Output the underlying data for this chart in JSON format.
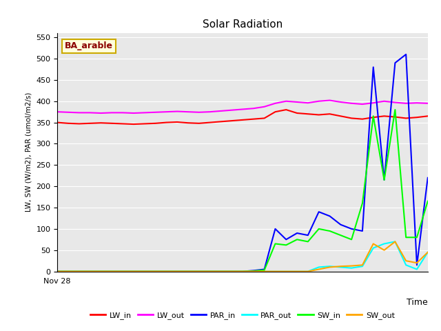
{
  "title": "Solar Radiation",
  "xlabel": "Time",
  "ylabel": "LW, SW (W/m2), PAR (umol/m2/s)",
  "annotation": "BA_arable",
  "ylim": [
    0,
    560
  ],
  "yticks": [
    0,
    50,
    100,
    150,
    200,
    250,
    300,
    350,
    400,
    450,
    500,
    550
  ],
  "x_label_start": "Nov 28",
  "background_color": "#e8e8e8",
  "series": {
    "LW_in": {
      "color": "#ff0000",
      "data": [
        350,
        348,
        347,
        348,
        349,
        348,
        347,
        346,
        347,
        348,
        350,
        351,
        349,
        348,
        350,
        352,
        354,
        356,
        358,
        360,
        375,
        380,
        372,
        370,
        368,
        370,
        365,
        360,
        358,
        362,
        365,
        363,
        360,
        362,
        365
      ]
    },
    "LW_out": {
      "color": "#ff00ff",
      "data": [
        375,
        374,
        373,
        373,
        372,
        373,
        373,
        372,
        373,
        374,
        375,
        376,
        375,
        374,
        375,
        377,
        379,
        381,
        383,
        387,
        395,
        400,
        398,
        396,
        400,
        402,
        398,
        395,
        393,
        396,
        400,
        397,
        395,
        396,
        395
      ]
    },
    "PAR_in": {
      "color": "#0000ff",
      "data": [
        0,
        0,
        0,
        0,
        0,
        0,
        0,
        0,
        0,
        0,
        0,
        0,
        0,
        0,
        0,
        0,
        0,
        0,
        2,
        5,
        100,
        75,
        90,
        85,
        140,
        130,
        110,
        100,
        95,
        480,
        215,
        490,
        510,
        15,
        220
      ]
    },
    "PAR_out": {
      "color": "#00ffff",
      "data": [
        0,
        0,
        0,
        0,
        0,
        0,
        0,
        0,
        0,
        0,
        0,
        0,
        0,
        0,
        0,
        0,
        0,
        0,
        0,
        0,
        0,
        0,
        0,
        0,
        10,
        12,
        10,
        8,
        12,
        55,
        65,
        70,
        15,
        5,
        45
      ]
    },
    "SW_in": {
      "color": "#00ff00",
      "data": [
        0,
        0,
        0,
        0,
        0,
        0,
        0,
        0,
        0,
        0,
        0,
        0,
        0,
        0,
        0,
        0,
        0,
        0,
        1,
        3,
        65,
        62,
        75,
        70,
        100,
        95,
        85,
        75,
        160,
        365,
        215,
        380,
        80,
        80,
        165
      ]
    },
    "SW_out": {
      "color": "#ffa500",
      "data": [
        0,
        0,
        0,
        0,
        0,
        0,
        0,
        0,
        0,
        0,
        0,
        0,
        0,
        0,
        0,
        0,
        0,
        0,
        0,
        0,
        0,
        0,
        0,
        0,
        5,
        10,
        12,
        13,
        15,
        65,
        50,
        70,
        25,
        20,
        45
      ]
    }
  }
}
